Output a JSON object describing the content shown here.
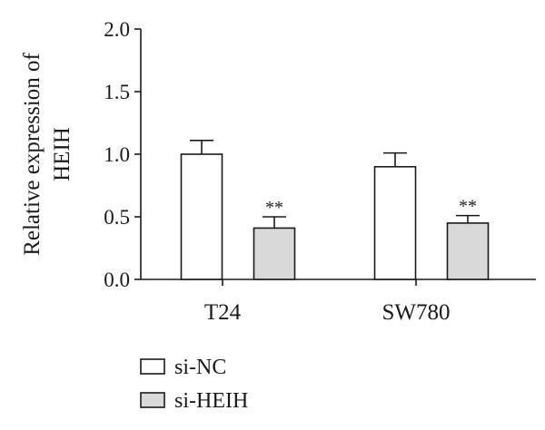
{
  "chart_data": {
    "type": "bar",
    "title": "",
    "xlabel": "",
    "ylabel_lines": [
      "Relative expression of",
      "HEIH"
    ],
    "categories": [
      "T24",
      "SW780"
    ],
    "ylim": [
      0,
      2.0
    ],
    "yticks": [
      "0.0",
      "0.5",
      "1.0",
      "1.5",
      "2.0"
    ],
    "grid": false,
    "legend_position": "bottom-left",
    "series": [
      {
        "name": "si-NC",
        "values": [
          1.0,
          0.9
        ],
        "errors": [
          0.11,
          0.11
        ],
        "annotations": [
          "",
          ""
        ],
        "color": "#ffffff"
      },
      {
        "name": "si-HEIH",
        "values": [
          0.41,
          0.45
        ],
        "errors": [
          0.09,
          0.06
        ],
        "annotations": [
          "**",
          "**"
        ],
        "color": "#d9d9d9"
      }
    ]
  }
}
